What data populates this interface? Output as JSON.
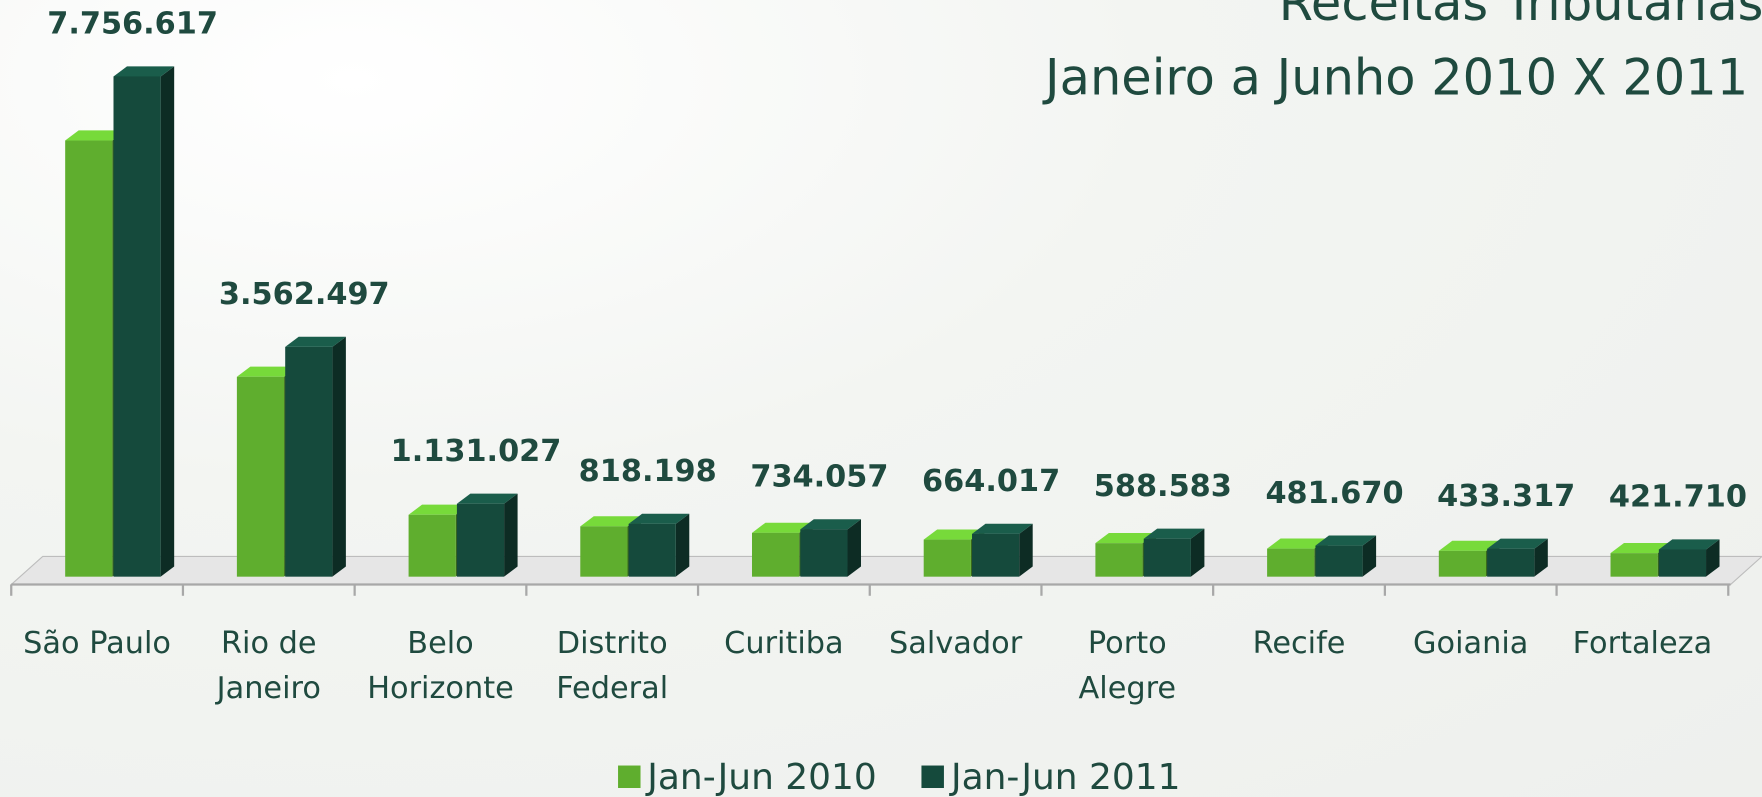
{
  "chart_data": {
    "type": "bar3d",
    "title": "Receitas Tributárias",
    "subtitle": "Janeiro a Junho 2010 X 2011",
    "categories": [
      "São Paulo",
      "Rio de Janeiro",
      "Belo Horizonte",
      "Distrito Federal",
      "Curitiba",
      "Salvador",
      "Porto Alegre",
      "Recife",
      "Goiania",
      "Fortaleza"
    ],
    "series": [
      {
        "name": "Jan-Jun 2010",
        "color": "#5fae2e",
        "values": [
          6763000,
          3100000,
          960000,
          780000,
          680000,
          575000,
          520000,
          435000,
          400000,
          365000
        ]
      },
      {
        "name": "Jan-Jun 2011",
        "color": "#154a3c",
        "values": [
          7756617,
          3562497,
          1131027,
          818198,
          734057,
          664017,
          588583,
          481670,
          433317,
          421710
        ],
        "value_labels": [
          "7.756.617",
          "3.562.497",
          "1.131.027",
          "818.198",
          "734.057",
          "664.017",
          "588.583",
          "481.670",
          "433.317",
          "421.710"
        ]
      }
    ],
    "legend": "bottom"
  }
}
